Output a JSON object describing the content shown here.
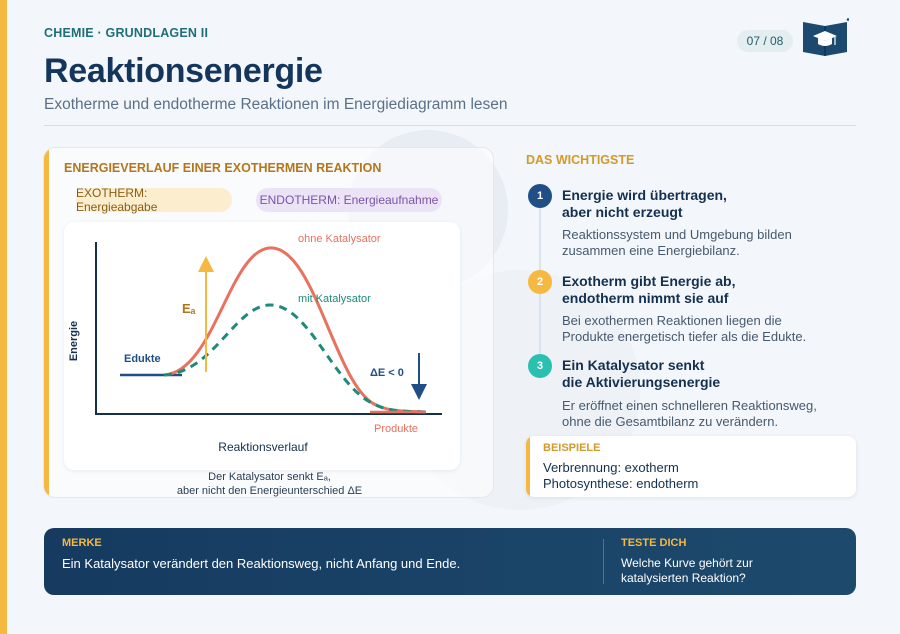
{
  "header": {
    "kicker": "CHEMIE · GRUNDLAGEN II",
    "page": "07 / 08",
    "title": "Reaktionsenergie",
    "subtitle": "Exotherme und endotherme Reaktionen im Energiediagramm lesen",
    "logo_icon": "book-with-graduation-cap-icon"
  },
  "diagram": {
    "title": "ENERGIEVERLAUF EINER EXOTHERMEN REAKTION",
    "pill_exo": "EXOTHERM: Energieabgabe",
    "pill_endo": "ENDOTHERM: Energieaufnahme",
    "ylabel": "Energie",
    "xlabel": "Reaktionsverlauf",
    "label_edukte": "Edukte",
    "label_produkte": "Produkte",
    "label_ohne": "ohne Katalysator",
    "label_mit": "mit Katalysator",
    "label_ea": "Eₐ",
    "label_delta": "ΔE < 0",
    "caption_line1": "Der Katalysator senkt Eₐ,",
    "caption_line2": "aber nicht den Energieunterschied ΔE",
    "colors": {
      "ohne": "#e8715f",
      "mit": "#1f8a7a",
      "edukte": "#1f4f86",
      "ea_arrow": "#f5b841",
      "delta_arrow": "#1f4f86",
      "exo_pill": "#fbedcd",
      "endo_pill": "#ece3f6"
    }
  },
  "wichtig": {
    "title": "DAS WICHTIGSTE",
    "points": [
      {
        "num": "1",
        "head1": "Energie wird übertragen,",
        "head2": "aber nicht erzeugt",
        "text1": "Reaktionssystem und Umgebung bilden",
        "text2": "zusammen eine Energiebilanz.",
        "color": "#1f4f86"
      },
      {
        "num": "2",
        "head1": "Exotherm gibt Energie ab,",
        "head2": "endotherm nimmt sie auf",
        "text1": "Bei exothermen Reaktionen liegen die",
        "text2": "Produkte energetisch tiefer als die Edukte.",
        "color": "#f5b841"
      },
      {
        "num": "3",
        "head1": "Ein Katalysator senkt",
        "head2": "die Aktivierungsenergie",
        "text1": "Er eröffnet einen schnelleren Reaktionsweg,",
        "text2": "ohne die Gesamtbilanz zu verändern.",
        "color": "#2bbfb0"
      }
    ]
  },
  "beispiele": {
    "label": "BEISPIELE",
    "line1": "Verbrennung: exotherm",
    "line2": "Photosynthese: endotherm"
  },
  "merke": {
    "label": "MERKE",
    "text": "Ein Katalysator verändert den Reaktionsweg, nicht Anfang und Ende."
  },
  "teste": {
    "label": "TESTE DICH",
    "line1": "Welche Kurve gehört zur",
    "line2": "katalysierten Reaktion?"
  }
}
